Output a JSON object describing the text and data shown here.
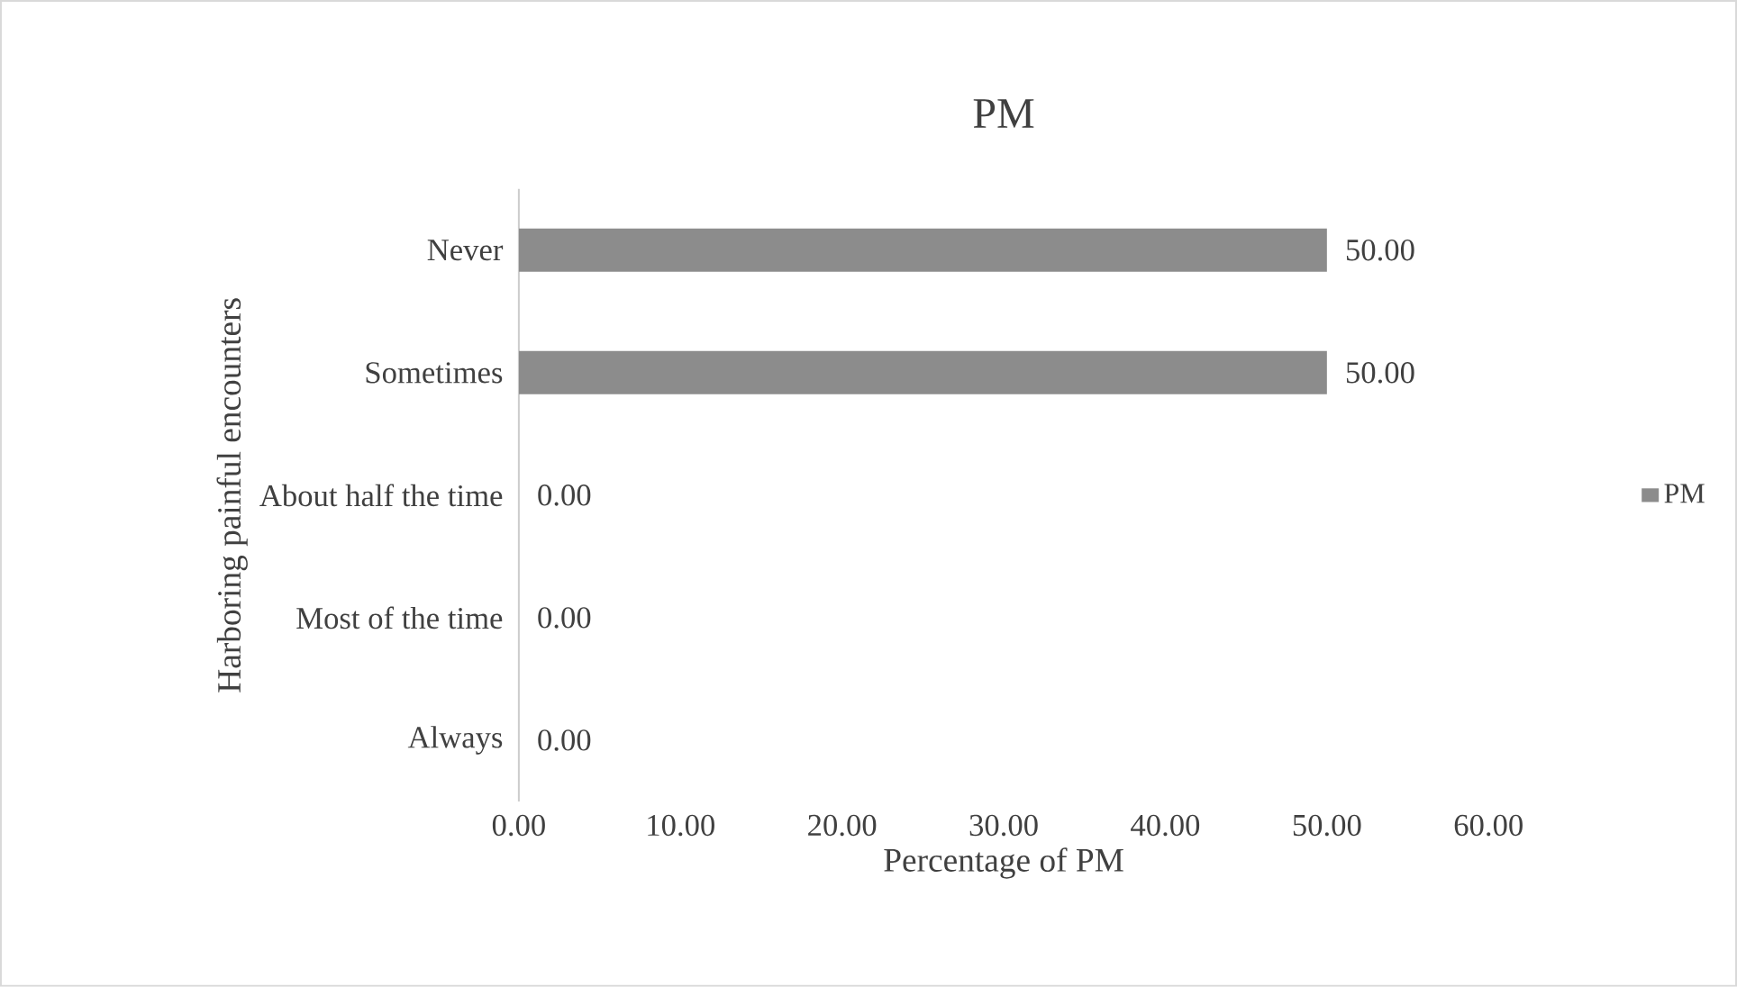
{
  "chart_data": {
    "type": "bar",
    "orientation": "horizontal",
    "title": "PM",
    "xlabel": "Percentage of PM",
    "ylabel": "Harboring painful encounters",
    "categories": [
      "Never",
      "Sometimes",
      "About half the time",
      "Most of the time",
      "Always"
    ],
    "series": [
      {
        "name": "PM",
        "color": "#8c8c8c",
        "values": [
          50,
          50,
          0,
          0,
          0
        ],
        "value_labels": [
          "50.00",
          "50.00",
          "0.00",
          "0.00",
          "0.00"
        ]
      }
    ],
    "xlim": [
      0,
      60
    ],
    "xticks": [
      {
        "value": 0,
        "label": "0.00"
      },
      {
        "value": 10,
        "label": "10.00"
      },
      {
        "value": 20,
        "label": "20.00"
      },
      {
        "value": 30,
        "label": "30.00"
      },
      {
        "value": 40,
        "label": "40.00"
      },
      {
        "value": 50,
        "label": "50.00"
      },
      {
        "value": 60,
        "label": "60.00"
      }
    ],
    "grid": false,
    "legend": "right"
  }
}
